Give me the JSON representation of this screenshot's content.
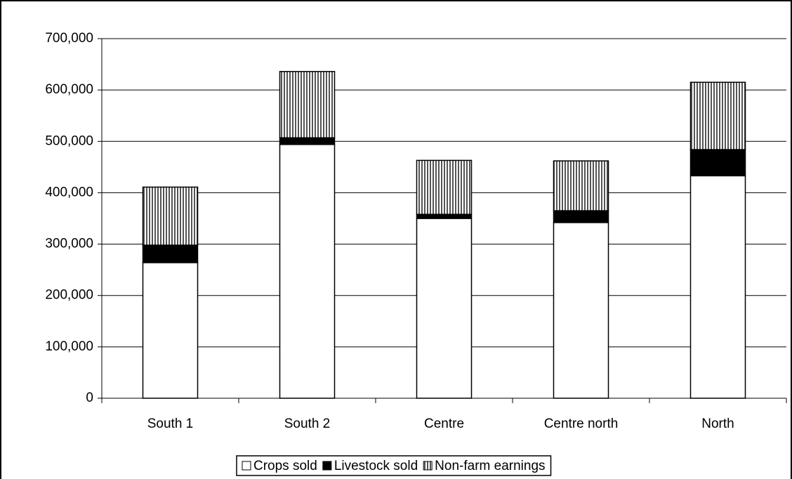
{
  "chart_data": {
    "type": "stacked-bar",
    "categories": [
      "South 1",
      "South 2",
      "Centre",
      "Centre north",
      "North"
    ],
    "series": [
      {
        "name": "Crops sold",
        "color": "#ffffff",
        "values": [
          264000,
          494000,
          350000,
          342000,
          433000
        ]
      },
      {
        "name": "Livestock sold",
        "color": "#000000",
        "values": [
          34000,
          13000,
          8000,
          23000,
          51000
        ]
      },
      {
        "name": "Non-farm earnings",
        "color": "#808080",
        "pattern": "vertical-lines",
        "values": [
          113000,
          129000,
          105000,
          97000,
          131000
        ]
      }
    ],
    "ylim": [
      0,
      700000
    ],
    "yticks": [
      0,
      {
        "value": 100000,
        "label": "100,000"
      },
      {
        "value": 200000,
        "label": "200,000"
      },
      {
        "value": 300000,
        "label": "300,000"
      },
      {
        "value": 400000,
        "label": "400,000"
      },
      {
        "value": 500000,
        "label": "500,000"
      },
      {
        "value": 600000,
        "label": "600,000"
      },
      {
        "value": 700000,
        "label": "700,000"
      }
    ],
    "grid": true,
    "legend": "bottom"
  }
}
